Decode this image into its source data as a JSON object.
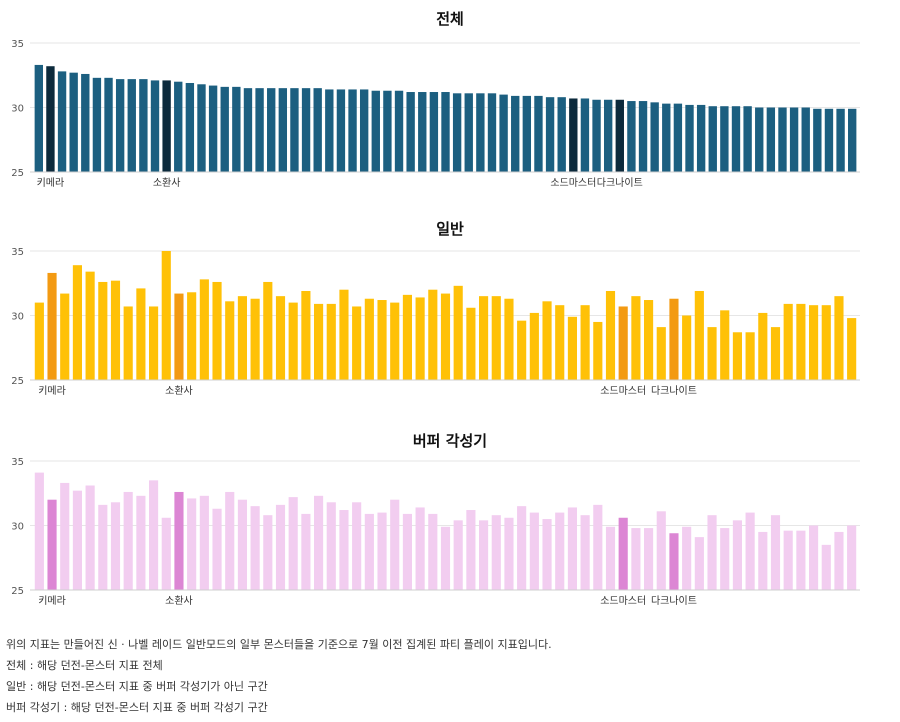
{
  "chart_data": [
    {
      "type": "bar",
      "title": "전체",
      "ylim": [
        25,
        35
      ],
      "yticks": [
        25,
        30,
        35
      ],
      "grid": true,
      "colors": {
        "base": "#1c5f80",
        "highlight": "#0c2a3c"
      },
      "highlight_indices": [
        1,
        11,
        46,
        50
      ],
      "category_labels": [
        "키메라",
        "소환사",
        "소드마스터",
        "다크나이트"
      ],
      "values": [
        33.3,
        33.2,
        32.8,
        32.7,
        32.6,
        32.3,
        32.3,
        32.2,
        32.2,
        32.2,
        32.1,
        32.1,
        32.0,
        31.9,
        31.8,
        31.7,
        31.6,
        31.6,
        31.5,
        31.5,
        31.5,
        31.5,
        31.5,
        31.5,
        31.5,
        31.4,
        31.4,
        31.4,
        31.4,
        31.3,
        31.3,
        31.3,
        31.2,
        31.2,
        31.2,
        31.2,
        31.1,
        31.1,
        31.1,
        31.1,
        31.0,
        30.9,
        30.9,
        30.9,
        30.8,
        30.8,
        30.7,
        30.7,
        30.6,
        30.6,
        30.6,
        30.5,
        30.5,
        30.4,
        30.3,
        30.3,
        30.2,
        30.2,
        30.1,
        30.1,
        30.1,
        30.1,
        30.0,
        30.0,
        30.0,
        30.0,
        30.0,
        29.9,
        29.9,
        29.9,
        29.9
      ]
    },
    {
      "type": "bar",
      "title": "일반",
      "ylim": [
        25,
        35
      ],
      "yticks": [
        25,
        30,
        35
      ],
      "grid": true,
      "colors": {
        "base": "#ffc107",
        "highlight": "#f39a12"
      },
      "highlight_indices": [
        1,
        11,
        46,
        50
      ],
      "category_labels": [
        "키메라",
        "소환사",
        "소드마스터",
        "다크나이트"
      ],
      "values": [
        31.0,
        33.3,
        31.7,
        33.9,
        33.4,
        32.6,
        32.7,
        30.7,
        32.1,
        30.7,
        35.0,
        31.7,
        31.8,
        32.8,
        32.6,
        31.1,
        31.5,
        31.3,
        32.6,
        31.5,
        31.0,
        31.9,
        30.9,
        30.9,
        32.0,
        30.7,
        31.3,
        31.2,
        31.0,
        31.6,
        31.4,
        32.0,
        31.7,
        32.3,
        30.6,
        31.5,
        31.5,
        31.3,
        29.6,
        30.2,
        31.1,
        30.8,
        29.9,
        30.8,
        29.5,
        31.9,
        30.7,
        31.5,
        31.2,
        29.1,
        31.3,
        30.0,
        31.9,
        29.1,
        30.4,
        28.7,
        28.7,
        30.2,
        29.1,
        30.9,
        30.9,
        30.8,
        30.8,
        31.5,
        29.8
      ]
    },
    {
      "type": "bar",
      "title": "버퍼 각성기",
      "ylim": [
        25,
        35
      ],
      "yticks": [
        25,
        30,
        35
      ],
      "grid": true,
      "colors": {
        "base": "#f2cdf0",
        "highlight": "#dc86d4"
      },
      "highlight_indices": [
        1,
        11,
        46,
        50
      ],
      "category_labels": [
        "키메라",
        "소환사",
        "소드마스터",
        "다크나이트"
      ],
      "values": [
        34.1,
        32.0,
        33.3,
        32.7,
        33.1,
        31.6,
        31.8,
        32.6,
        32.3,
        33.5,
        30.6,
        32.6,
        32.1,
        32.3,
        31.3,
        32.6,
        32.0,
        31.5,
        30.8,
        31.6,
        32.2,
        30.9,
        32.3,
        31.8,
        31.2,
        31.8,
        30.9,
        31.0,
        32.0,
        30.9,
        31.4,
        30.9,
        29.9,
        30.4,
        31.2,
        30.4,
        30.8,
        30.6,
        31.5,
        31.0,
        30.5,
        31.0,
        31.4,
        30.8,
        31.6,
        29.9,
        30.6,
        29.8,
        29.8,
        31.1,
        29.4,
        29.9,
        29.1,
        30.8,
        29.8,
        30.4,
        31.0,
        29.5,
        30.8,
        29.6,
        29.6,
        30.0,
        28.5,
        29.5,
        30.0
      ]
    }
  ],
  "notes": [
    "위의 지표는 만들어진 신 · 나벨 레이드 일반모드의 일부 몬스터들을 기준으로 7월 이전 집계된 파티 플레이 지표입니다.",
    "전체 : 해당 던전-몬스터 지표 전체",
    "일반 : 해당 던전-몬스터 지표 중 버퍼 각성기가 아닌 구간",
    "버퍼 각성기 : 해당 던전-몬스터 지표 중 버퍼 각성기 구간"
  ]
}
